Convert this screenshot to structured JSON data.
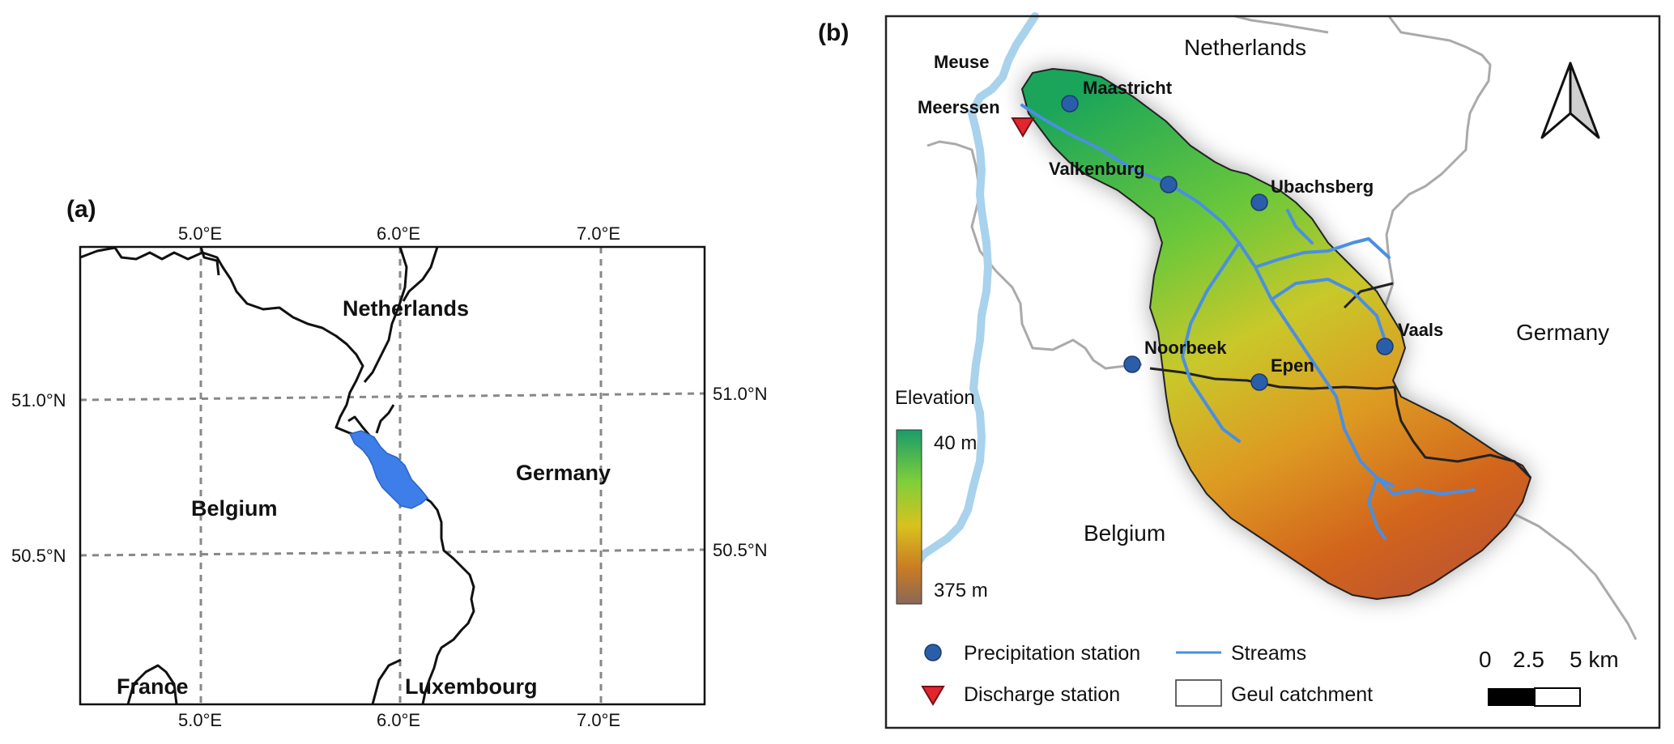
{
  "panel_a": {
    "label": "(a)",
    "lon_ticks_top": [
      "5.0°E",
      "6.0°E",
      "7.0°E"
    ],
    "lon_ticks_bottom": [
      "5.0°E",
      "6.0°E",
      "7.0°E"
    ],
    "lat_ticks_left": [
      "51.0°N",
      "50.5°N"
    ],
    "lat_ticks_right": [
      "51.0°N",
      "50.5°N"
    ],
    "countries": {
      "netherlands": "Netherlands",
      "germany": "Germany",
      "belgium": "Belgium",
      "france": "France",
      "luxembourg": "Luxembourg"
    },
    "colors": {
      "catchment": "#3d7ee8",
      "grid": "#888888",
      "border": "#111111"
    }
  },
  "panel_b": {
    "label": "(b)",
    "countries": {
      "netherlands": "Netherlands",
      "germany": "Germany",
      "belgium": "Belgium"
    },
    "river": "Meuse",
    "discharge_station": "Meerssen",
    "precipitation_stations": [
      "Maastricht",
      "Valkenburg",
      "Ubachsberg",
      "Vaals",
      "Noorbeek",
      "Epen"
    ],
    "elevation": {
      "title": "Elevation",
      "min_label": "40 m",
      "max_label": "375 m"
    },
    "legend": {
      "precipitation_station": "Precipitation station",
      "discharge_station": "Discharge station",
      "streams": "Streams",
      "catchment": "Geul catchment"
    },
    "scale_bar": {
      "labels": [
        "0",
        "2.5",
        "5 km"
      ]
    },
    "north_arrow": "north-arrow-icon",
    "colors": {
      "station": "#2b5ea8",
      "discharge": "#e0262e",
      "streams": "#4a8fe0",
      "river": "#a9d2ec",
      "borders": "#aaaaaa",
      "elev_low": "#1a9c6a",
      "elev_mid": "#d8b51e",
      "elev_high": "#8a6858"
    }
  }
}
